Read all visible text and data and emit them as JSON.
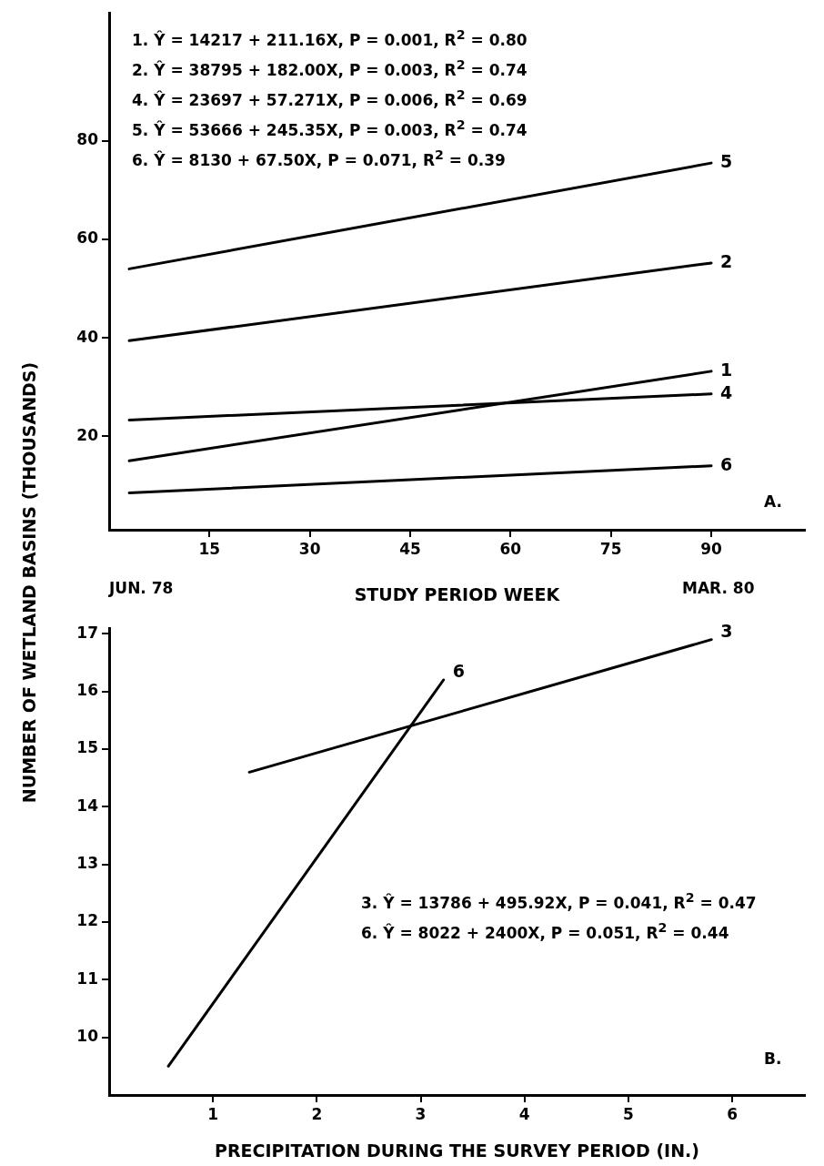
{
  "chart_data": [
    {
      "type": "line",
      "xlabel": "STUDY PERIOD WEEK",
      "ylabel": "NUMBER OF WETLAND BASINS (THOUSANDS)",
      "xlim": [
        0,
        104
      ],
      "ylim": [
        1,
        106
      ],
      "xticks": [
        15,
        30,
        45,
        60,
        75,
        90
      ],
      "yticks": [
        20,
        40,
        60,
        80
      ],
      "grid": false,
      "legend": false,
      "marker": "none",
      "line_style": "solid",
      "series": [
        {
          "name": "5",
          "color": "#000000",
          "x": [
            3,
            90
          ],
          "values": [
            54.0,
            75.5
          ]
        },
        {
          "name": "2",
          "color": "#000000",
          "x": [
            3,
            90
          ],
          "values": [
            39.4,
            55.2
          ]
        },
        {
          "name": "1",
          "color": "#000000",
          "x": [
            3,
            90
          ],
          "values": [
            15.0,
            33.2
          ]
        },
        {
          "name": "4",
          "color": "#000000",
          "x": [
            3,
            90
          ],
          "values": [
            23.3,
            28.6
          ]
        },
        {
          "name": "6",
          "color": "#000000",
          "x": [
            3,
            90
          ],
          "values": [
            8.5,
            14.0
          ]
        }
      ],
      "annotations": [
        "1. Ŷ = 14217 + 211.16X, P = 0.001, R$^{2}$ = 0.80",
        "2. Ŷ = 38795 + 182.00X, P = 0.003, R$^{2}$ = 0.74",
        "4. Ŷ = 23697 + 57.271X, P = 0.006, R$^{2}$ = 0.69",
        "5. Ŷ = 53666 + 245.35X, P = 0.003, R$^{2}$ = 0.74",
        "6. Ŷ = 8130 + 67.50X, P = 0.071, R$^{2}$ = 0.39",
        "A.",
        "JUN. 78",
        "MAR. 80"
      ]
    },
    {
      "type": "line",
      "xlabel": "PRECIPITATION DURING THE SURVEY PERIOD (IN.)",
      "xlim": [
        0,
        6.7
      ],
      "ylim": [
        9,
        17.1
      ],
      "xticks": [
        1,
        2,
        3,
        4,
        5,
        6
      ],
      "yticks": [
        10,
        11,
        12,
        13,
        14,
        15,
        16,
        17
      ],
      "grid": false,
      "legend": false,
      "marker": "none",
      "line_style": "solid",
      "series": [
        {
          "name": "3",
          "color": "#000000",
          "x": [
            1.35,
            5.8
          ],
          "values": [
            14.6,
            16.9
          ]
        },
        {
          "name": "6",
          "color": "#000000",
          "x": [
            0.57,
            3.22
          ],
          "values": [
            9.5,
            16.2
          ]
        }
      ],
      "annotations": [
        "3. Ŷ = 13786 + 495.92X, P = 0.041, R$^{2}$ = 0.47",
        "6. Ŷ = 8022 + 2400X, P = 0.051, R$^{2}$ = 0.44",
        "B."
      ]
    }
  ]
}
